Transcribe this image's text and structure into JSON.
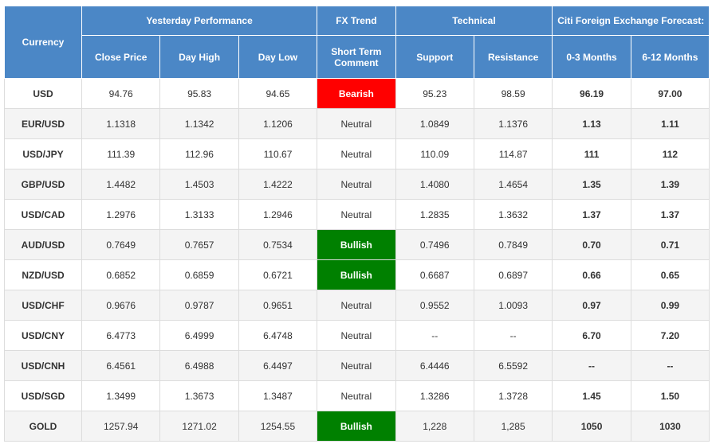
{
  "header": {
    "currency": "Currency",
    "groups": [
      {
        "label": "Yesterday Performance",
        "columns": [
          "Close Price",
          "Day High",
          "Day Low"
        ]
      },
      {
        "label": "FX Trend",
        "columns": [
          "Short Term Comment"
        ]
      },
      {
        "label": "Technical",
        "columns": [
          "Support",
          "Resistance"
        ]
      },
      {
        "label": "Citi Foreign Exchange Forecast:",
        "columns": [
          "0-3 Months",
          "6-12 Months"
        ]
      }
    ]
  },
  "trend_colors": {
    "Bearish": "#ff0000",
    "Bullish": "#008000"
  },
  "rows": [
    [
      "USD",
      "94.76",
      "95.83",
      "94.65",
      "Bearish",
      "95.23",
      "98.59",
      "96.19",
      "97.00"
    ],
    [
      "EUR/USD",
      "1.1318",
      "1.1342",
      "1.1206",
      "Neutral",
      "1.0849",
      "1.1376",
      "1.13",
      "1.11"
    ],
    [
      "USD/JPY",
      "111.39",
      "112.96",
      "110.67",
      "Neutral",
      "110.09",
      "114.87",
      "111",
      "112"
    ],
    [
      "GBP/USD",
      "1.4482",
      "1.4503",
      "1.4222",
      "Neutral",
      "1.4080",
      "1.4654",
      "1.35",
      "1.39"
    ],
    [
      "USD/CAD",
      "1.2976",
      "1.3133",
      "1.2946",
      "Neutral",
      "1.2835",
      "1.3632",
      "1.37",
      "1.37"
    ],
    [
      "AUD/USD",
      "0.7649",
      "0.7657",
      "0.7534",
      "Bullish",
      "0.7496",
      "0.7849",
      "0.70",
      "0.71"
    ],
    [
      "NZD/USD",
      "0.6852",
      "0.6859",
      "0.6721",
      "Bullish",
      "0.6687",
      "0.6897",
      "0.66",
      "0.65"
    ],
    [
      "USD/CHF",
      "0.9676",
      "0.9787",
      "0.9651",
      "Neutral",
      "0.9552",
      "1.0093",
      "0.97",
      "0.99"
    ],
    [
      "USD/CNY",
      "6.4773",
      "6.4999",
      "6.4748",
      "Neutral",
      "--",
      "--",
      "6.70",
      "7.20"
    ],
    [
      "USD/CNH",
      "6.4561",
      "6.4988",
      "6.4497",
      "Neutral",
      "6.4446",
      "6.5592",
      "--",
      "--"
    ],
    [
      "USD/SGD",
      "1.3499",
      "1.3673",
      "1.3487",
      "Neutral",
      "1.3286",
      "1.3728",
      "1.45",
      "1.50"
    ],
    [
      "GOLD",
      "1257.94",
      "1271.02",
      "1254.55",
      "Bullish",
      "1,228",
      "1,285",
      "1050",
      "1030"
    ]
  ]
}
